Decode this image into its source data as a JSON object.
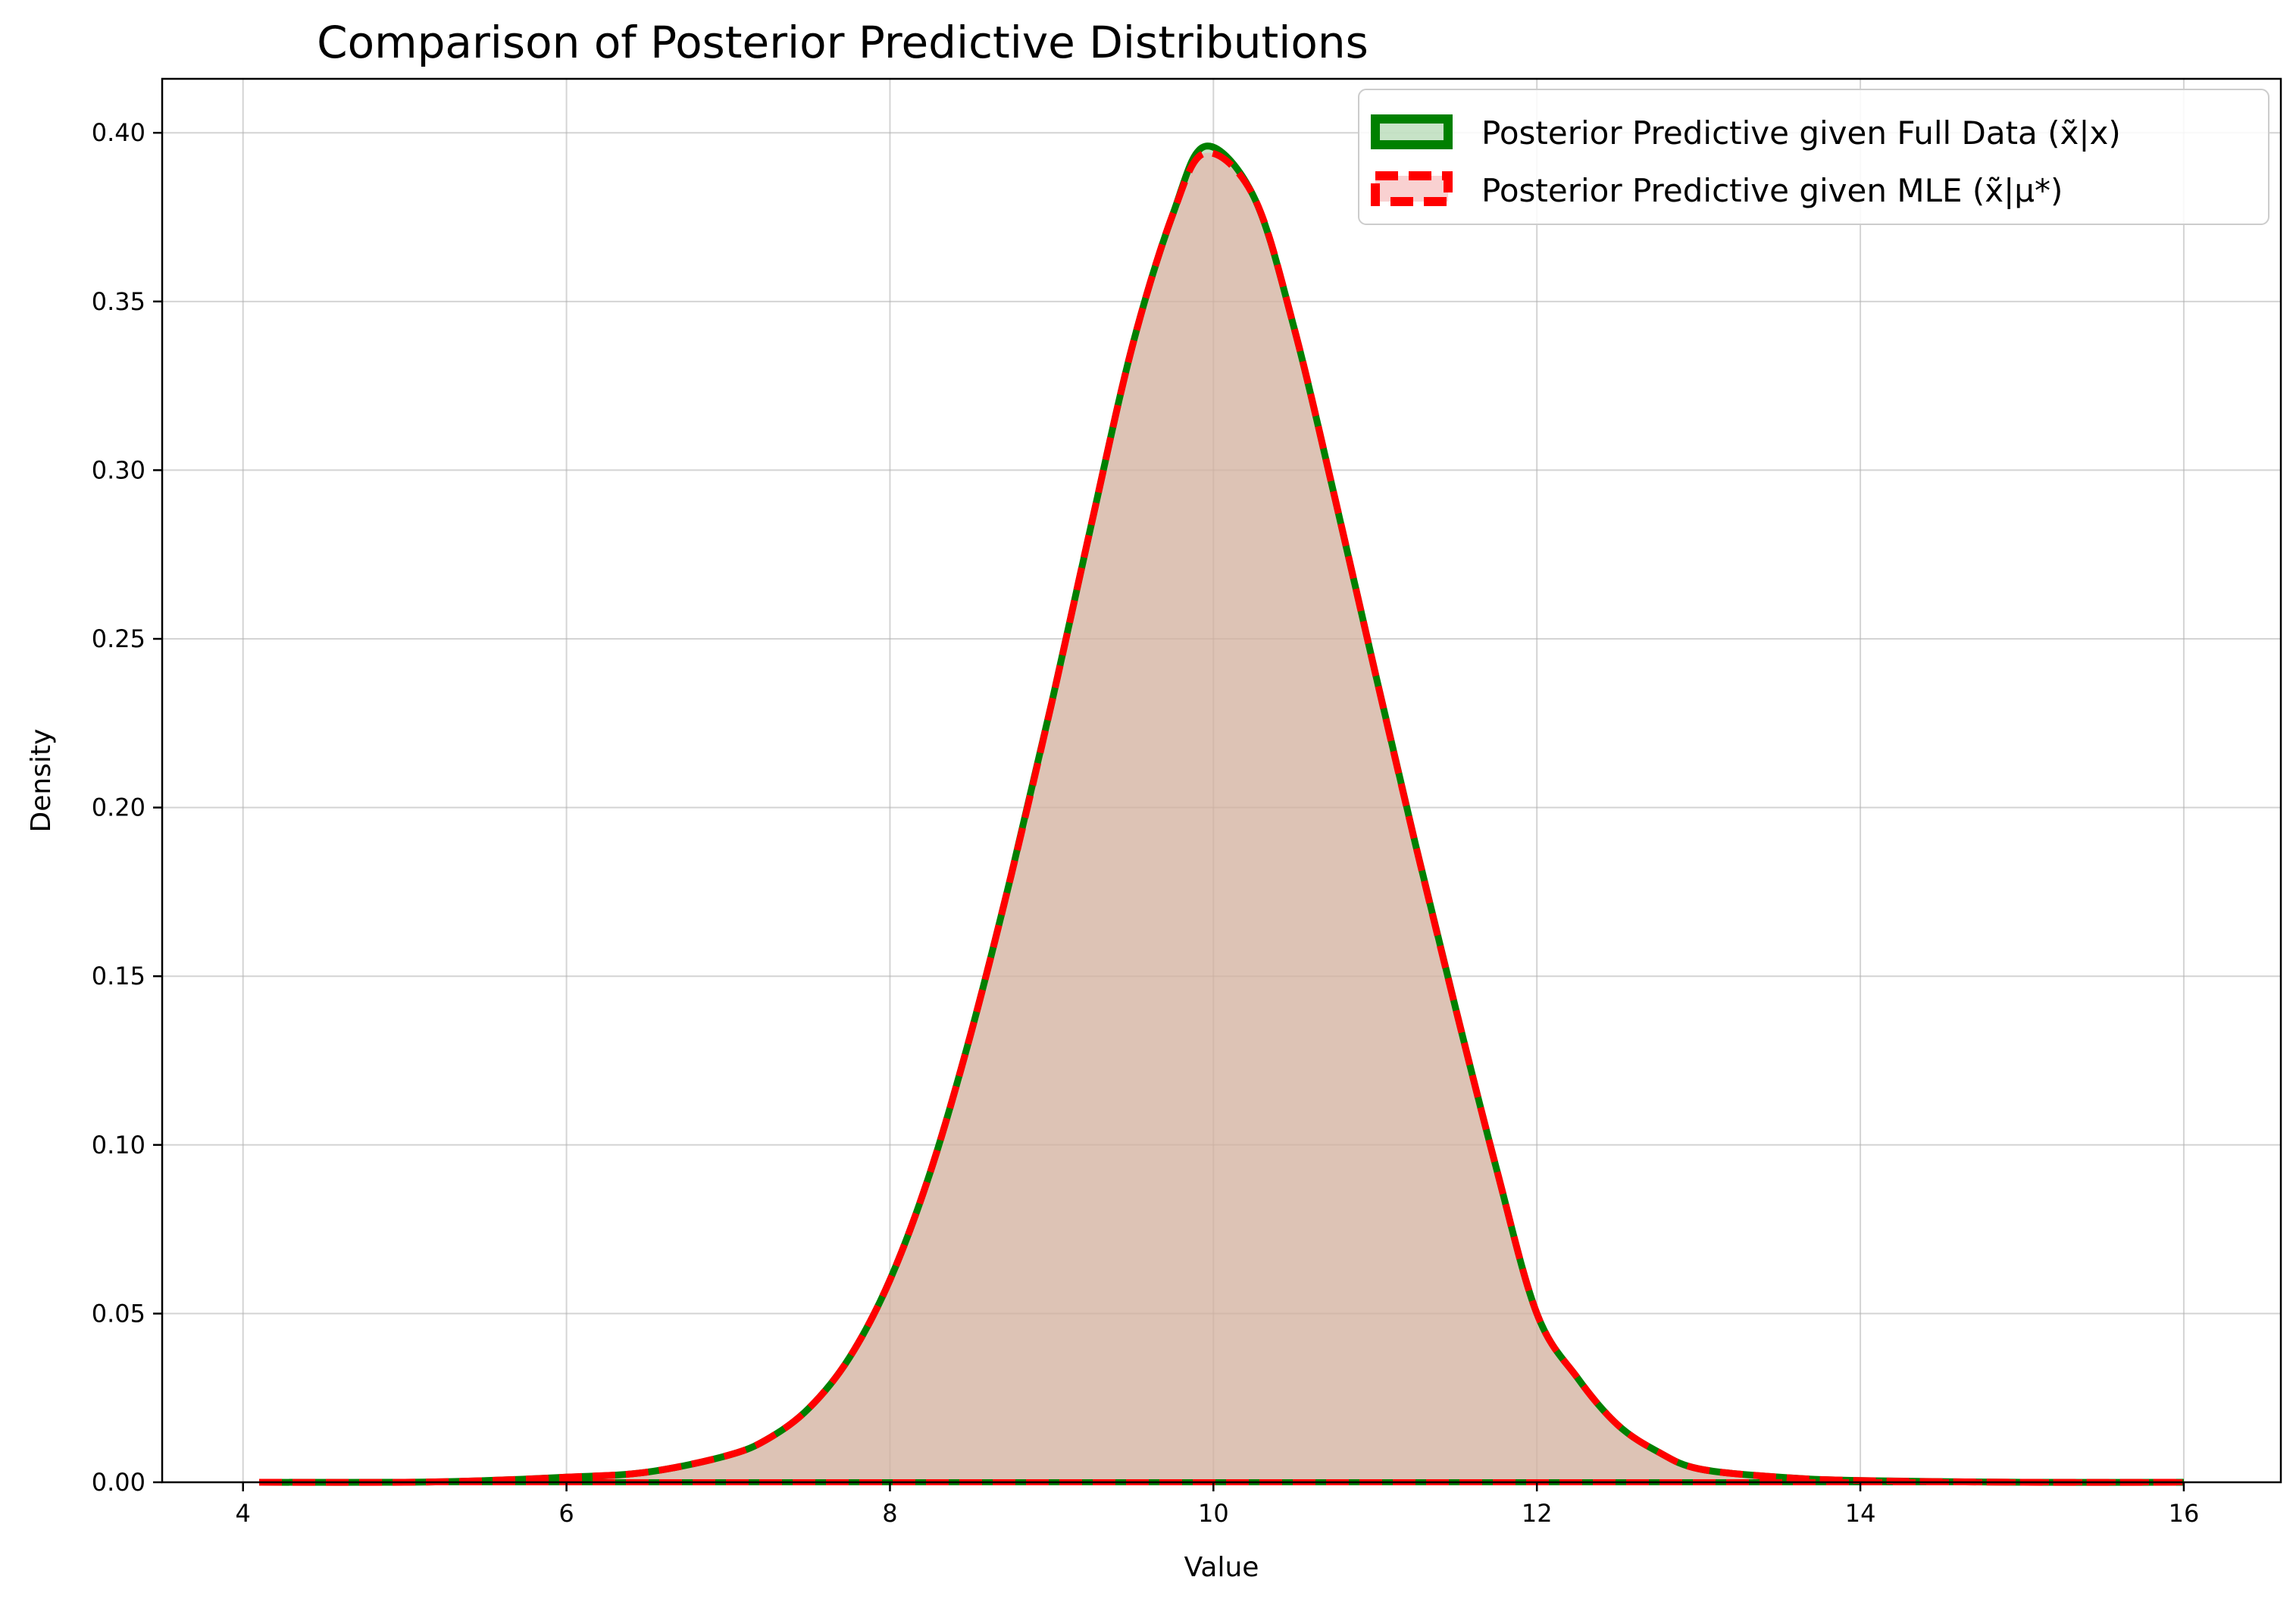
{
  "chart_data": {
    "type": "area",
    "title": "Comparison of Posterior Predictive Distributions",
    "xlabel": "Value",
    "ylabel": "Density",
    "xlim": [
      3.5,
      16.6
    ],
    "ylim": [
      0.0,
      0.416
    ],
    "x_ticks": [
      "4",
      "6",
      "8",
      "10",
      "12",
      "14",
      "16"
    ],
    "y_ticks": [
      "0.00",
      "0.05",
      "0.10",
      "0.15",
      "0.20",
      "0.25",
      "0.30",
      "0.35",
      "0.40"
    ],
    "grid": true,
    "legend_position": "upper right",
    "x": [
      4.1,
      5.0,
      5.5,
      6.0,
      6.5,
      7.0,
      7.25,
      7.5,
      7.75,
      8.0,
      8.25,
      8.5,
      8.75,
      9.0,
      9.25,
      9.5,
      9.75,
      9.95,
      10.25,
      10.5,
      10.75,
      11.0,
      11.25,
      11.5,
      11.75,
      12.0,
      12.25,
      12.5,
      12.75,
      13.0,
      13.5,
      14.0,
      15.0,
      16.0
    ],
    "series": [
      {
        "name": "Posterior Predictive given Full Data (x̃|x)",
        "color": "#008000",
        "fill": "#8fc78f",
        "linestyle": "solid",
        "values": [
          0.0,
          0.0,
          0.0005,
          0.0015,
          0.003,
          0.008,
          0.013,
          0.022,
          0.037,
          0.06,
          0.092,
          0.133,
          0.18,
          0.231,
          0.285,
          0.337,
          0.376,
          0.396,
          0.381,
          0.342,
          0.292,
          0.24,
          0.189,
          0.14,
          0.093,
          0.05,
          0.031,
          0.017,
          0.009,
          0.004,
          0.0015,
          0.0005,
          0.0,
          0.0
        ]
      },
      {
        "name": "Posterior Predictive given MLE (x̃|μ*)",
        "color": "#ff0000",
        "fill": "#f4a3a3",
        "linestyle": "dashed",
        "values": [
          0.0,
          0.0,
          0.0005,
          0.0015,
          0.003,
          0.008,
          0.013,
          0.022,
          0.037,
          0.06,
          0.092,
          0.133,
          0.18,
          0.231,
          0.285,
          0.337,
          0.376,
          0.394,
          0.381,
          0.342,
          0.292,
          0.24,
          0.189,
          0.14,
          0.093,
          0.05,
          0.031,
          0.017,
          0.009,
          0.004,
          0.0015,
          0.0005,
          0.0,
          0.0
        ]
      }
    ]
  }
}
